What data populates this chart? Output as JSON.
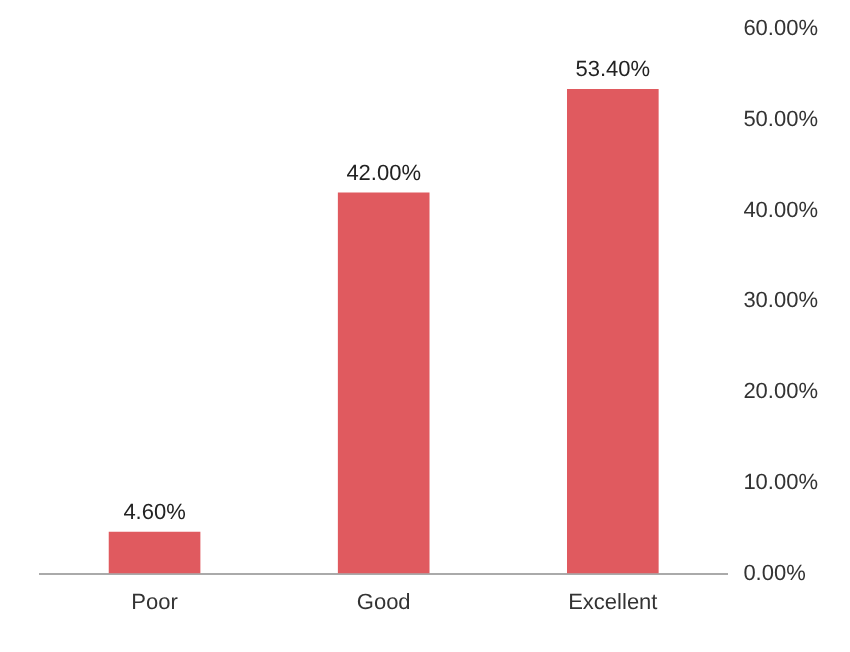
{
  "chart_data": {
    "type": "bar",
    "categories": [
      "Poor",
      "Good",
      "Excellent"
    ],
    "values": [
      4.6,
      42,
      53.4
    ],
    "color": "#e05a5f",
    "value_labels": [
      "4.60%",
      "42.00%",
      "53.40%"
    ],
    "ylim": [
      0,
      60
    ],
    "yticks": [
      {
        "value": 0,
        "label": "0.00%"
      },
      {
        "value": 10,
        "label": "10.00%"
      },
      {
        "value": 20,
        "label": "20.00%"
      },
      {
        "value": 30,
        "label": "30.00%"
      },
      {
        "value": 40,
        "label": "40.00%"
      },
      {
        "value": 50,
        "label": "50.00%"
      },
      {
        "value": 60,
        "label": "60.00%"
      }
    ],
    "grid": false,
    "legend": false
  }
}
